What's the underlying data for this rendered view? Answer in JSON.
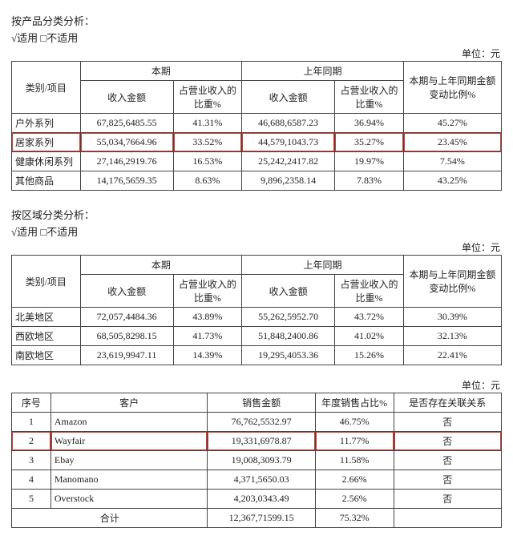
{
  "colors": {
    "border": "#444444",
    "highlight": "#d33a2f",
    "background": "#ffffff",
    "text": "#222222"
  },
  "unit_label": "单位：元",
  "check_label": "√适用 □不适用",
  "section1": {
    "title": "按产品分类分析：",
    "header": {
      "cat": "类别/项目",
      "period": "本期",
      "prev": "上年同期",
      "change": "本期与上年同期金额变动比例%",
      "rev": "收入金额",
      "pct": "占营业收入的比重%"
    },
    "rows": [
      {
        "label": "户外系列",
        "rev1": "67,825,6485.55",
        "pct1": "41.31%",
        "rev2": "46,688,6587.23",
        "pct2": "36.94%",
        "chg": "45.27%",
        "hl": false
      },
      {
        "label": "居家系列",
        "rev1": "55,034,7664.96",
        "pct1": "33.52%",
        "rev2": "44,579,1043.73",
        "pct2": "35.27%",
        "chg": "23.45%",
        "hl": true
      },
      {
        "label": "健康休闲系列",
        "rev1": "27,146,2919.76",
        "pct1": "16.53%",
        "rev2": "25,242,2417.82",
        "pct2": "19.97%",
        "chg": "7.54%",
        "hl": false
      },
      {
        "label": "其他商品",
        "rev1": "14,176,5659.35",
        "pct1": "8.63%",
        "rev2": "9,896,2358.14",
        "pct2": "7.83%",
        "chg": "43.25%",
        "hl": false
      }
    ]
  },
  "section2": {
    "title": "按区域分类分析：",
    "rows": [
      {
        "label": "北美地区",
        "rev1": "72,057,4484.36",
        "pct1": "43.89%",
        "rev2": "55,262,5952.70",
        "pct2": "43.72%",
        "chg": "30.39%",
        "hl": false
      },
      {
        "label": "西欧地区",
        "rev1": "68,505,8298.15",
        "pct1": "41.73%",
        "rev2": "51,848,2400.86",
        "pct2": "41.02%",
        "chg": "32.13%",
        "hl": false
      },
      {
        "label": "南欧地区",
        "rev1": "23,619,9947.11",
        "pct1": "14.39%",
        "rev2": "19,295,4053.36",
        "pct2": "15.26%",
        "chg": "22.41%",
        "hl": false
      }
    ]
  },
  "section3": {
    "header": {
      "no": "序号",
      "cust": "客户",
      "sales": "销售金额",
      "pct": "年度销售占比%",
      "rel": "是否存在关联关系"
    },
    "rows": [
      {
        "no": "1",
        "cust": "Amazon",
        "sales": "76,762,5532.97",
        "pct": "46.75%",
        "rel": "否",
        "hl": false
      },
      {
        "no": "2",
        "cust": "Wayfair",
        "sales": "19,331,6978.87",
        "pct": "11.77%",
        "rel": "否",
        "hl": true
      },
      {
        "no": "3",
        "cust": "Ebay",
        "sales": "19,008,3093.79",
        "pct": "11.58%",
        "rel": "否",
        "hl": false
      },
      {
        "no": "4",
        "cust": "Manomano",
        "sales": "4,371,5650.03",
        "pct": "2.66%",
        "rel": "否",
        "hl": false
      },
      {
        "no": "5",
        "cust": "Overstock",
        "sales": "4,203,0343.49",
        "pct": "2.56%",
        "rel": "否",
        "hl": false
      }
    ],
    "total": {
      "label": "合计",
      "sales": "12,367,71599.15",
      "pct": "75.32%"
    }
  }
}
